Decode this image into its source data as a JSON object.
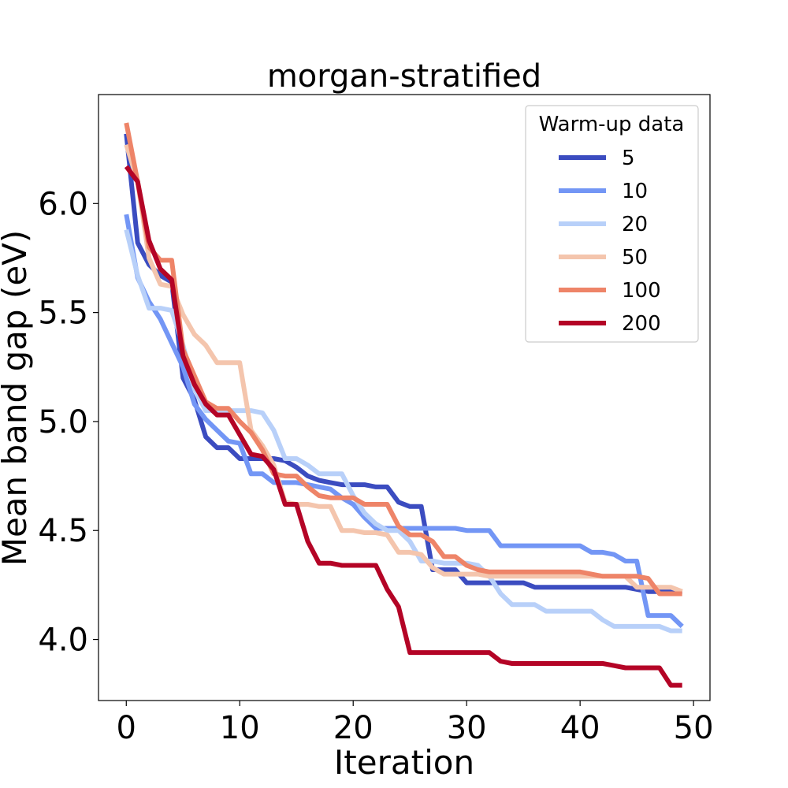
{
  "chart_data": {
    "type": "line",
    "title": "morgan-stratified",
    "xlabel": "Iteration",
    "ylabel": "Mean band gap (eV)",
    "xlim": [
      -2.45,
      51.45
    ],
    "ylim": [
      3.72,
      6.5
    ],
    "xticks": [
      0,
      10,
      20,
      30,
      40,
      50
    ],
    "xtick_labels": [
      "0",
      "10",
      "20",
      "30",
      "40",
      "50"
    ],
    "yticks": [
      4.0,
      4.5,
      5.0,
      5.5,
      6.0
    ],
    "ytick_labels": [
      "4.0",
      "4.5",
      "5.0",
      "5.5",
      "6.0"
    ],
    "grid": false,
    "legend": {
      "title": "Warm-up data",
      "placement": "top-right"
    },
    "x": [
      0,
      1,
      2,
      3,
      4,
      5,
      6,
      7,
      8,
      9,
      10,
      11,
      12,
      13,
      14,
      15,
      16,
      17,
      18,
      19,
      20,
      21,
      22,
      23,
      24,
      25,
      26,
      27,
      28,
      29,
      30,
      31,
      32,
      33,
      34,
      35,
      36,
      37,
      38,
      39,
      40,
      41,
      42,
      43,
      44,
      45,
      46,
      47,
      48,
      49
    ],
    "series": [
      {
        "name": "5",
        "color": "#3b4cc0",
        "values": [
          6.32,
          5.82,
          5.72,
          5.67,
          5.64,
          5.2,
          5.1,
          4.93,
          4.88,
          4.88,
          4.83,
          4.83,
          4.83,
          4.83,
          4.82,
          4.79,
          4.75,
          4.73,
          4.72,
          4.71,
          4.71,
          4.71,
          4.7,
          4.7,
          4.63,
          4.61,
          4.61,
          4.32,
          4.32,
          4.32,
          4.26,
          4.26,
          4.26,
          4.26,
          4.26,
          4.26,
          4.24,
          4.24,
          4.24,
          4.24,
          4.24,
          4.24,
          4.24,
          4.24,
          4.24,
          4.23,
          4.22,
          4.22,
          4.22,
          4.22
        ]
      },
      {
        "name": "10",
        "color": "#7396f5",
        "values": [
          5.95,
          5.66,
          5.55,
          5.47,
          5.36,
          5.25,
          5.08,
          5.01,
          4.96,
          4.91,
          4.9,
          4.76,
          4.76,
          4.72,
          4.72,
          4.72,
          4.71,
          4.7,
          4.69,
          4.65,
          4.62,
          4.56,
          4.51,
          4.51,
          4.51,
          4.51,
          4.51,
          4.51,
          4.51,
          4.51,
          4.5,
          4.5,
          4.5,
          4.43,
          4.43,
          4.43,
          4.43,
          4.43,
          4.43,
          4.43,
          4.43,
          4.4,
          4.4,
          4.39,
          4.36,
          4.36,
          4.11,
          4.11,
          4.11,
          4.06
        ]
      },
      {
        "name": "20",
        "color": "#b8d0f9",
        "values": [
          5.88,
          5.67,
          5.52,
          5.52,
          5.51,
          5.35,
          5.15,
          5.05,
          5.05,
          5.05,
          5.05,
          5.05,
          5.04,
          4.96,
          4.83,
          4.83,
          4.8,
          4.76,
          4.76,
          4.76,
          4.66,
          4.58,
          4.53,
          4.5,
          4.5,
          4.45,
          4.36,
          4.36,
          4.35,
          4.35,
          4.35,
          4.34,
          4.29,
          4.21,
          4.16,
          4.16,
          4.16,
          4.13,
          4.13,
          4.13,
          4.13,
          4.13,
          4.09,
          4.06,
          4.06,
          4.06,
          4.06,
          4.06,
          4.04,
          4.04
        ]
      },
      {
        "name": "50",
        "color": "#f4c5ad",
        "values": [
          6.27,
          6.1,
          5.75,
          5.63,
          5.62,
          5.49,
          5.4,
          5.35,
          5.27,
          5.27,
          5.27,
          4.96,
          4.89,
          4.8,
          4.63,
          4.62,
          4.62,
          4.61,
          4.61,
          4.5,
          4.5,
          4.49,
          4.49,
          4.48,
          4.4,
          4.4,
          4.39,
          4.33,
          4.3,
          4.3,
          4.3,
          4.3,
          4.29,
          4.29,
          4.29,
          4.29,
          4.29,
          4.29,
          4.29,
          4.29,
          4.29,
          4.29,
          4.29,
          4.29,
          4.29,
          4.24,
          4.24,
          4.24,
          4.24,
          4.22
        ]
      },
      {
        "name": "100",
        "color": "#ee8468",
        "values": [
          6.37,
          6.1,
          5.8,
          5.74,
          5.74,
          5.33,
          5.21,
          5.09,
          5.06,
          5.06,
          5.0,
          4.95,
          4.87,
          4.76,
          4.75,
          4.75,
          4.7,
          4.66,
          4.65,
          4.65,
          4.65,
          4.62,
          4.62,
          4.62,
          4.52,
          4.48,
          4.48,
          4.45,
          4.38,
          4.38,
          4.34,
          4.32,
          4.31,
          4.31,
          4.31,
          4.31,
          4.31,
          4.31,
          4.31,
          4.31,
          4.31,
          4.3,
          4.29,
          4.29,
          4.29,
          4.29,
          4.28,
          4.21,
          4.21,
          4.21
        ]
      },
      {
        "name": "200",
        "color": "#b40426",
        "values": [
          6.17,
          6.1,
          5.83,
          5.7,
          5.65,
          5.3,
          5.17,
          5.08,
          5.03,
          5.03,
          4.94,
          4.85,
          4.84,
          4.78,
          4.62,
          4.62,
          4.45,
          4.35,
          4.35,
          4.34,
          4.34,
          4.34,
          4.34,
          4.23,
          4.15,
          3.94,
          3.94,
          3.94,
          3.94,
          3.94,
          3.94,
          3.94,
          3.94,
          3.9,
          3.89,
          3.89,
          3.89,
          3.89,
          3.89,
          3.89,
          3.89,
          3.89,
          3.89,
          3.88,
          3.87,
          3.87,
          3.87,
          3.87,
          3.79,
          3.79
        ]
      }
    ]
  }
}
